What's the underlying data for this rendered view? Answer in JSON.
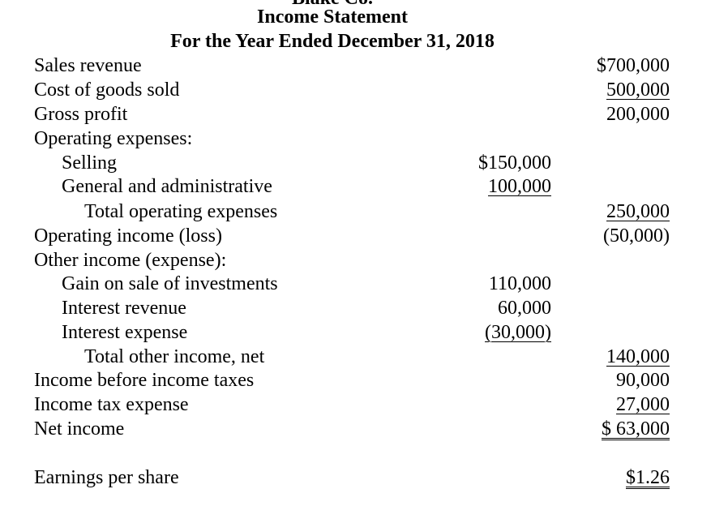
{
  "header": {
    "company": "Blake Co.",
    "title": "Income Statement",
    "period": "For the Year Ended December 31, 2018"
  },
  "rows": [
    {
      "label": "Sales revenue",
      "col1": "",
      "col2": "$700,000"
    },
    {
      "label": "Cost of goods sold",
      "col1": "",
      "col2": "500,000"
    },
    {
      "label": "Gross profit",
      "col1": "",
      "col2": "200,000"
    },
    {
      "label": "Operating expenses:",
      "col1": "",
      "col2": ""
    },
    {
      "label": "Selling",
      "col1": "$150,000",
      "col2": ""
    },
    {
      "label": "General and administrative",
      "col1": "100,000",
      "col2": ""
    },
    {
      "label": "Total operating expenses",
      "col1": "",
      "col2": "250,000"
    },
    {
      "label": "Operating income (loss)",
      "col1": "",
      "col2": "(50,000)"
    },
    {
      "label": "Other income (expense):",
      "col1": "",
      "col2": ""
    },
    {
      "label": "Gain on sale of investments",
      "col1": "110,000",
      "col2": ""
    },
    {
      "label": "Interest revenue",
      "col1": "60,000",
      "col2": ""
    },
    {
      "label": "Interest expense",
      "col1": "(30,000)",
      "col2": ""
    },
    {
      "label": "Total other income, net",
      "col1": "",
      "col2": "140,000"
    },
    {
      "label": "Income before income taxes",
      "col1": "",
      "col2": "90,000"
    },
    {
      "label": "Income tax expense",
      "col1": "",
      "col2": "27,000"
    },
    {
      "label": "Net income",
      "col1": "",
      "col2": "$ 63,000"
    },
    {
      "label": "Earnings per share",
      "col1": "",
      "col2": "$1.26"
    }
  ]
}
